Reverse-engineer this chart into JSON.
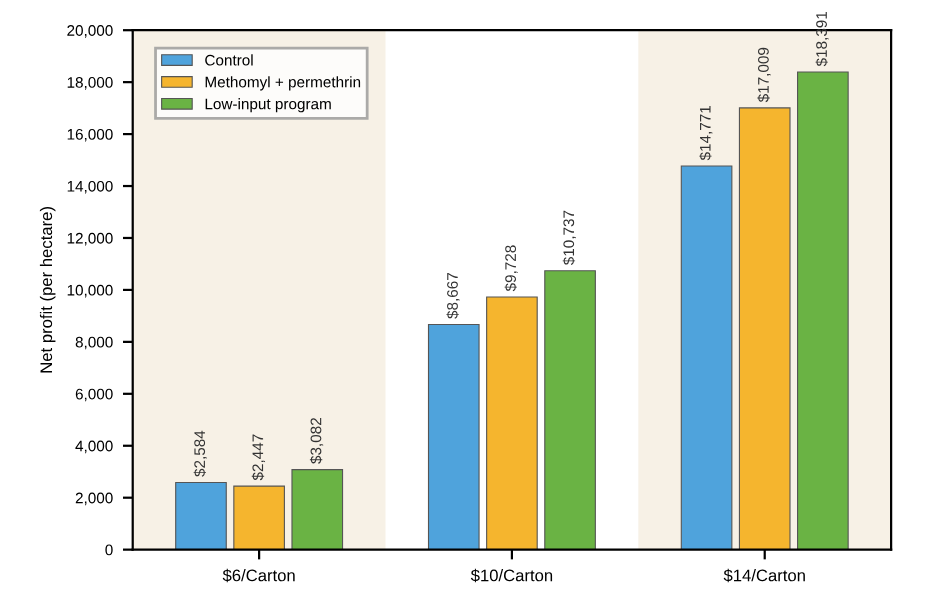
{
  "chart_data": {
    "type": "bar",
    "ylabel": "Net profit (per hectare)",
    "categories": [
      "$6/Carton",
      "$10/Carton",
      "$14/Carton"
    ],
    "series": [
      {
        "name": "Control",
        "color": "#4fa3dc",
        "values": [
          2584,
          8667,
          14771
        ],
        "value_labels": [
          "$2,584",
          "$8,667",
          "$14,771"
        ]
      },
      {
        "name": "Methomyl + permethrin",
        "color": "#f5b52e",
        "values": [
          2447,
          9728,
          17009
        ],
        "value_labels": [
          "$2,447",
          "$9,728",
          "$17,009"
        ]
      },
      {
        "name": "Low-input program",
        "color": "#6ab344",
        "values": [
          3082,
          10737,
          18391
        ],
        "value_labels": [
          "$3,082",
          "$10,737",
          "$18,391"
        ]
      }
    ],
    "ylim": [
      0,
      20000
    ],
    "yticks": [
      {
        "value": 0,
        "label": "0"
      },
      {
        "value": 2000,
        "label": "2,000"
      },
      {
        "value": 4000,
        "label": "4,000"
      },
      {
        "value": 6000,
        "label": "6,000"
      },
      {
        "value": 8000,
        "label": "8,000"
      },
      {
        "value": 10000,
        "label": "10,000"
      },
      {
        "value": 12000,
        "label": "12,000"
      },
      {
        "value": 14000,
        "label": "14,000"
      },
      {
        "value": 16000,
        "label": "16,000"
      },
      {
        "value": 18000,
        "label": "18,000"
      },
      {
        "value": 20000,
        "label": "20,000"
      }
    ],
    "grid": false,
    "legend": "top left"
  }
}
